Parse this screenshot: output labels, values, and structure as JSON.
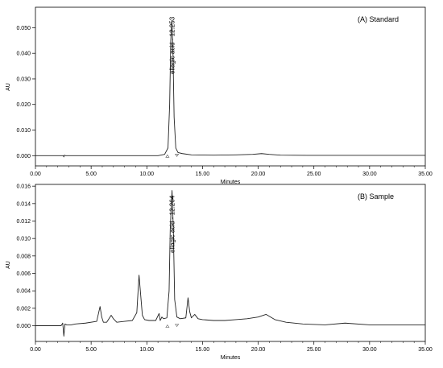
{
  "chart_data": [
    {
      "type": "line",
      "title": "(A) Standard",
      "xlabel": "Minutes",
      "ylabel": "AU",
      "xlim": [
        0,
        35
      ],
      "ylim": [
        -0.004,
        0.058
      ],
      "xticks": [
        "0.00",
        "5.00",
        "10.00",
        "15.00",
        "20.00",
        "25.00",
        "30.00",
        "35.00"
      ],
      "yticks": [
        0.0,
        0.01,
        0.02,
        0.03,
        0.04,
        0.05
      ],
      "ytick_labels": [
        "0.000",
        "0.010",
        "0.020",
        "0.030",
        "0.040",
        "0.050"
      ],
      "peak_label": "ellagic acid - 12.253",
      "series": [
        {
          "x": [
            0,
            2.5,
            2.55,
            2.6,
            2.7,
            5,
            8,
            10,
            11,
            11.6,
            11.9,
            12.05,
            12.15,
            12.253,
            12.35,
            12.45,
            12.6,
            12.8,
            13.2,
            14,
            16,
            18,
            19.5,
            20.3,
            21,
            22,
            25,
            30,
            35
          ],
          "y": [
            0.0,
            0.0,
            -0.0005,
            0.0002,
            0.0,
            0.0,
            0.0,
            0.0,
            0.0,
            0.0005,
            0.003,
            0.02,
            0.045,
            0.053,
            0.04,
            0.015,
            0.003,
            0.0012,
            0.0008,
            0.0003,
            0.0002,
            0.0003,
            0.0005,
            0.0008,
            0.0005,
            0.0002,
            0.0001,
            0.0001,
            0.0001
          ]
        }
      ]
    },
    {
      "type": "line",
      "title": "(B) Sample",
      "xlabel": "Minutes",
      "ylabel": "AU",
      "xlim": [
        0,
        35
      ],
      "ylim": [
        -0.0018,
        0.0162
      ],
      "xticks": [
        "0.00",
        "5.00",
        "10.00",
        "15.00",
        "20.00",
        "25.00",
        "30.00",
        "35.00"
      ],
      "yticks": [
        0.0,
        0.002,
        0.004,
        0.006,
        0.008,
        0.01,
        0.012,
        0.014,
        0.016
      ],
      "ytick_labels": [
        "0.000",
        "0.002",
        "0.004",
        "0.006",
        "0.008",
        "0.010",
        "0.012",
        "0.014",
        "0.016"
      ],
      "peak_label": "ellagic acid - 12.264",
      "series": [
        {
          "x": [
            0,
            2.3,
            2.45,
            2.55,
            2.65,
            2.8,
            3.2,
            3.6,
            4.5,
            5.5,
            5.8,
            5.95,
            6.1,
            6.4,
            6.8,
            7.0,
            7.3,
            8.0,
            8.7,
            9.1,
            9.3,
            9.45,
            9.6,
            9.8,
            10.2,
            10.8,
            11.1,
            11.2,
            11.35,
            11.5,
            11.8,
            12.0,
            12.1,
            12.264,
            12.38,
            12.5,
            12.7,
            13.0,
            13.5,
            13.7,
            13.85,
            14.0,
            14.3,
            14.6,
            15.0,
            16.0,
            17.0,
            18.0,
            19.0,
            20.0,
            20.7,
            21.5,
            22.5,
            24.0,
            26.0,
            27.8,
            30.0,
            35.0
          ],
          "y": [
            0.0,
            0.0,
            0.0003,
            -0.0012,
            0.0002,
            0.0001,
            0.0001,
            0.0002,
            0.0003,
            0.0005,
            0.0022,
            0.001,
            0.0004,
            0.0004,
            0.0012,
            0.0008,
            0.0004,
            0.0005,
            0.0006,
            0.0015,
            0.0058,
            0.0035,
            0.0012,
            0.0007,
            0.0006,
            0.0006,
            0.0014,
            0.0006,
            0.001,
            0.0008,
            0.0009,
            0.004,
            0.011,
            0.0155,
            0.011,
            0.003,
            0.001,
            0.0008,
            0.0009,
            0.0032,
            0.0016,
            0.0009,
            0.0013,
            0.0008,
            0.0007,
            0.0006,
            0.0006,
            0.0007,
            0.0008,
            0.001,
            0.0013,
            0.0007,
            0.0004,
            0.0002,
            0.0001,
            0.0003,
            0.0001,
            0.0001
          ]
        }
      ]
    }
  ]
}
